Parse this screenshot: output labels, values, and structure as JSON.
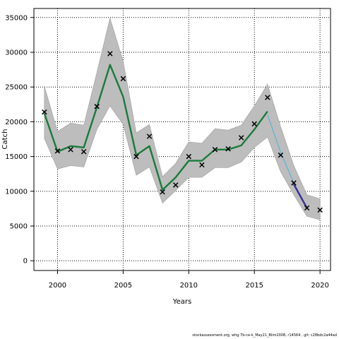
{
  "chart_data": {
    "type": "line",
    "title": "",
    "xlabel": "Years",
    "ylabel": "Catch",
    "xlim": [
      1998.2,
      2020.8
    ],
    "ylim": [
      -1400,
      36300
    ],
    "x_ticks": [
      2000,
      2005,
      2010,
      2015,
      2020
    ],
    "y_ticks": [
      0,
      5000,
      10000,
      15000,
      20000,
      25000,
      30000,
      35000
    ],
    "grid": true,
    "years": [
      1999,
      2000,
      2001,
      2002,
      2003,
      2004,
      2005,
      2006,
      2007,
      2008,
      2009,
      2010,
      2011,
      2012,
      2013,
      2014,
      2015,
      2016,
      2017,
      2018,
      2019,
      2020
    ],
    "series": [
      {
        "role": "observed",
        "marker": "x",
        "color": "#000000",
        "x": [
          1999,
          2000,
          2001,
          2002,
          2003,
          2004,
          2005,
          2006,
          2007,
          2008,
          2009,
          2010,
          2011,
          2012,
          2013,
          2014,
          2015,
          2016,
          2017,
          2018,
          2019,
          2020
        ],
        "values": [
          21400,
          15800,
          16000,
          15700,
          22200,
          29800,
          26200,
          15000,
          17900,
          9900,
          10900,
          15000,
          13800,
          16000,
          16100,
          17700,
          19700,
          23500,
          15200,
          11200,
          7600,
          7300
        ]
      },
      {
        "role": "fit-historical",
        "color": "#1b7a3c",
        "x": [
          1999,
          2000,
          2001,
          2002,
          2003,
          2004,
          2005,
          2006,
          2007,
          2008,
          2009,
          2010,
          2011,
          2012,
          2013,
          2014,
          2015,
          2016
        ],
        "values": [
          21200,
          15700,
          16500,
          16300,
          22100,
          28200,
          23600,
          15200,
          16500,
          10200,
          12000,
          14400,
          14400,
          16000,
          16000,
          16600,
          18900,
          21500
        ]
      },
      {
        "role": "fit-forecast",
        "color": "#5bb3d6",
        "x": [
          2016,
          2017,
          2018,
          2019
        ],
        "values": [
          21000,
          15600,
          11200,
          7700
        ]
      },
      {
        "role": "fit-recent",
        "color": "#3a2f8f",
        "x": [
          2018,
          2019
        ],
        "values": [
          11000,
          7600
        ]
      },
      {
        "role": "confidence-band",
        "color": "#bdbdbd",
        "x": [
          1999,
          2000,
          2001,
          2002,
          2003,
          2004,
          2005,
          2006,
          2007,
          2008,
          2009,
          2010,
          2011,
          2012,
          2013,
          2014,
          2015,
          2016,
          2017,
          2018,
          2019,
          2020
        ],
        "upper": [
          25100,
          18600,
          19800,
          19500,
          27100,
          34900,
          28700,
          18400,
          19600,
          12100,
          14000,
          17100,
          16900,
          19000,
          18800,
          19500,
          22300,
          25400,
          19300,
          13700,
          9500,
          8900
        ],
        "lower": [
          17600,
          13200,
          13700,
          13500,
          18900,
          22300,
          19600,
          12300,
          13500,
          8300,
          10100,
          12000,
          12000,
          13400,
          13400,
          14200,
          16300,
          17800,
          12800,
          9500,
          6400,
          5900
        ]
      }
    ]
  },
  "footer_text": "stockassessment.org, whg.7b-ce-k_May21_Blim2008, r14564 , git: c28bdc2a44ad"
}
